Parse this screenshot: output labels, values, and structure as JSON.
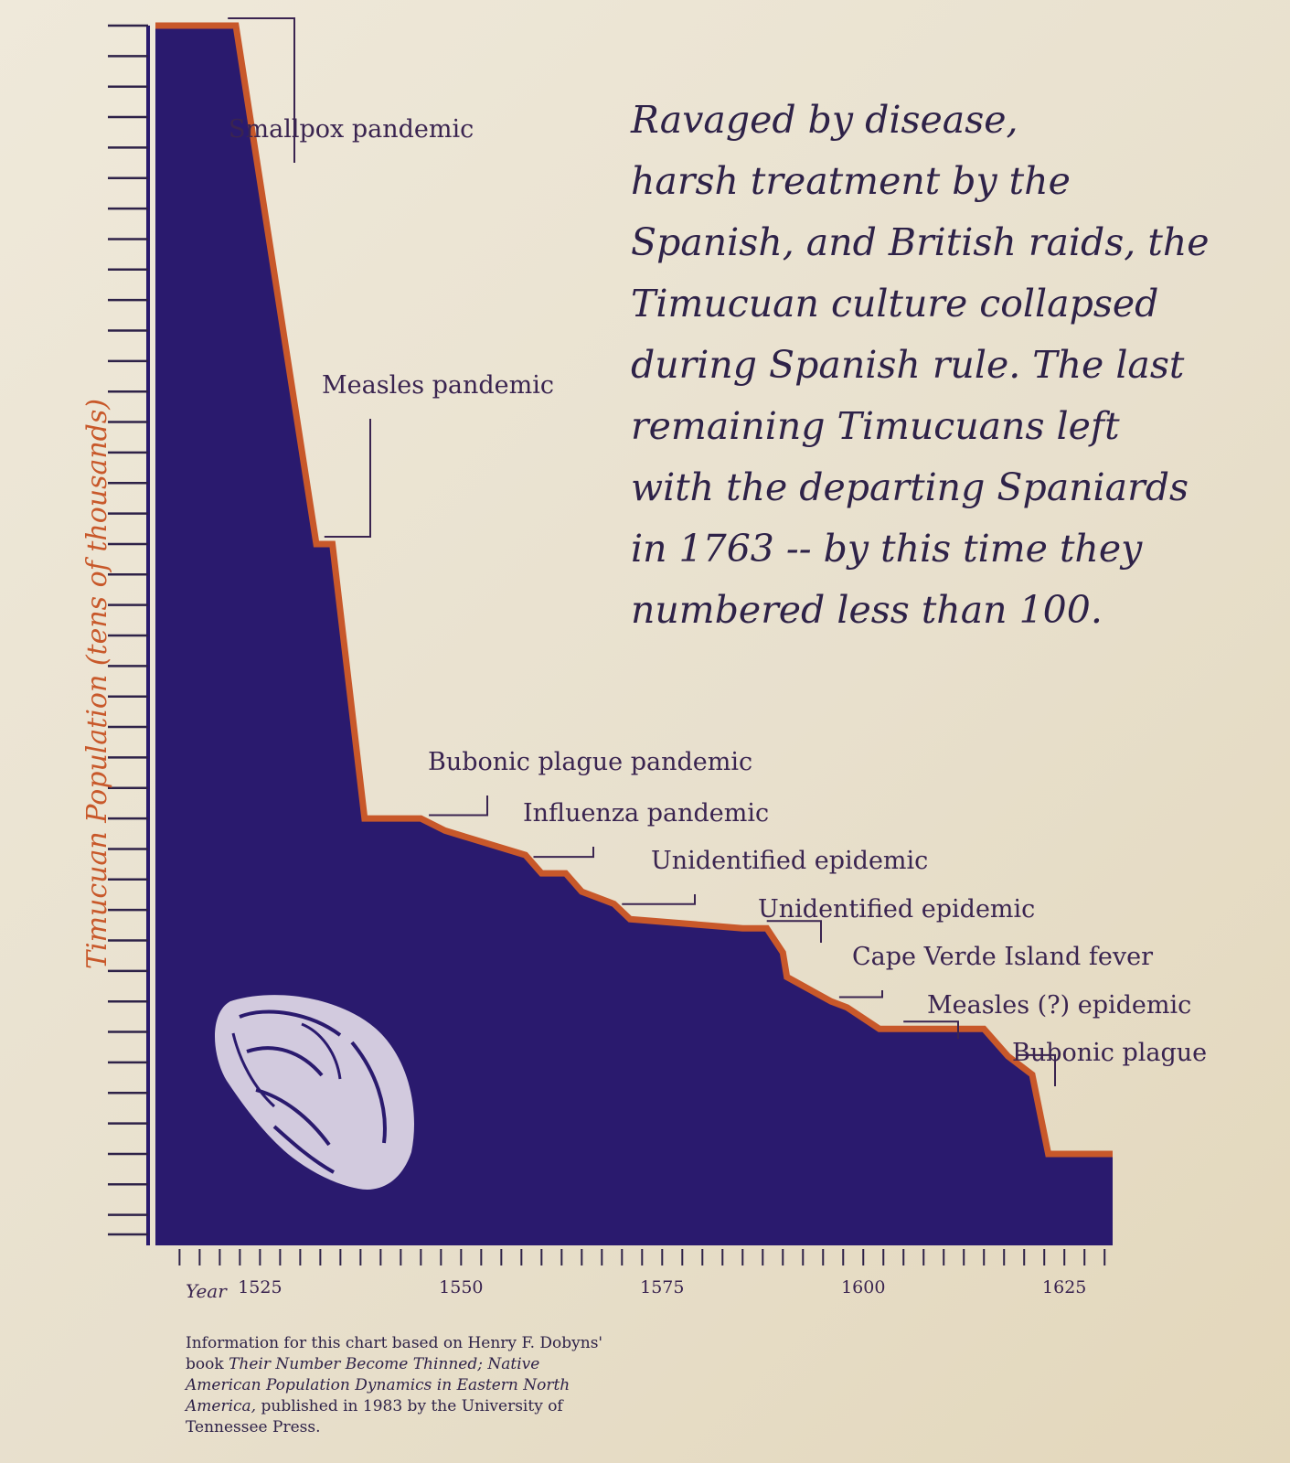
{
  "chart_data": {
    "type": "area",
    "ylabel": "Timucuan Population (tens of thousands)",
    "xlabel": "Year",
    "xlim": [
      1512,
      1631
    ],
    "xticks": [
      1525,
      1550,
      1575,
      1600,
      1625
    ],
    "ylim": [
      0,
      40
    ],
    "y_minor_ticks": 40,
    "x_minor_step": 2.5,
    "x": [
      1512,
      1520,
      1522,
      1532,
      1534,
      1538,
      1545,
      1548,
      1558,
      1560,
      1563,
      1565,
      1568,
      1569,
      1571,
      1585,
      1588,
      1590,
      1590.5,
      1596,
      1598,
      1602,
      1604,
      1615,
      1618,
      1621,
      1623,
      1631
    ],
    "y": [
      40,
      40,
      40,
      23.0,
      23.0,
      14.0,
      14.0,
      13.6,
      12.8,
      12.2,
      12.2,
      11.6,
      11.3,
      11.2,
      10.7,
      10.4,
      10.4,
      9.6,
      8.8,
      8.0,
      7.8,
      7.1,
      7.1,
      7.1,
      6.2,
      5.6,
      3.0,
      3.0
    ],
    "annotations": [
      {
        "label": "Smallpox pandemic",
        "x": 1521
      },
      {
        "label": "Measles pandemic",
        "x": 1533
      },
      {
        "label": "Bubonic plague pandemic",
        "x": 1546
      },
      {
        "label": "Influenza pandemic",
        "x": 1559
      },
      {
        "label": "Unidentified epidemic",
        "x": 1570
      },
      {
        "label": "Unidentified epidemic",
        "x": 1588
      },
      {
        "label": "Cape Verde Island fever",
        "x": 1597
      },
      {
        "label": "Measles (?) epidemic",
        "x": 1605
      },
      {
        "label": "Bubonic plague",
        "x": 1619
      }
    ],
    "colors": {
      "fill": "#2a1a6e",
      "outline": "#c8582a",
      "ylabel": "#c8582a",
      "text": "#3a2450"
    }
  },
  "narrative": [
    "Ravaged by disease,",
    "harsh treatment by the",
    "Spanish, and British raids, the",
    "Timucuan culture collapsed",
    "during Spanish rule.  The last",
    "remaining Timucuans left",
    "with the departing Spaniards",
    "in 1763 -- by this time they",
    "numbered less than 100."
  ],
  "source": {
    "part1": "Information for this chart based on Henry F. Dobyns' book ",
    "title": "Their Number Become Thinned; Native American Population Dynamics in Eastern North America,",
    "part2": " published in 1983 by the University of Tennessee Press."
  }
}
